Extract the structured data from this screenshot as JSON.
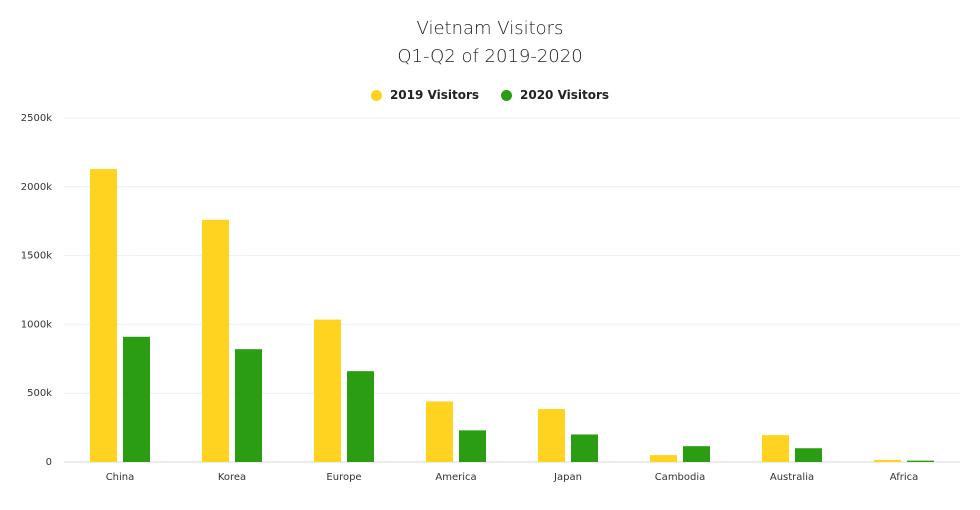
{
  "chart_data": {
    "type": "bar",
    "title": "Vietnam Visitors",
    "subtitle": "Q1-Q2 of 2019-2020",
    "categories": [
      "China",
      "Korea",
      "Europe",
      "America",
      "Japan",
      "Cambodia",
      "Australia",
      "Africa"
    ],
    "series": [
      {
        "name": "2019 Visitors",
        "color": "#FFD31F",
        "values": [
          2130,
          1760,
          1035,
          440,
          385,
          50,
          195,
          15
        ]
      },
      {
        "name": "2020 Visitors",
        "color": "#2A9D12",
        "values": [
          910,
          820,
          660,
          230,
          200,
          115,
          100,
          10
        ]
      }
    ],
    "ylim": [
      0,
      2500
    ],
    "yticks": [
      0,
      500,
      1000,
      1500,
      2000,
      2500
    ],
    "ytick_labels": [
      "0",
      "500k",
      "1000k",
      "1500k",
      "2000k",
      "2500k"
    ],
    "xlabel": "",
    "ylabel": "",
    "grid": true,
    "legend_position": "top-center"
  }
}
